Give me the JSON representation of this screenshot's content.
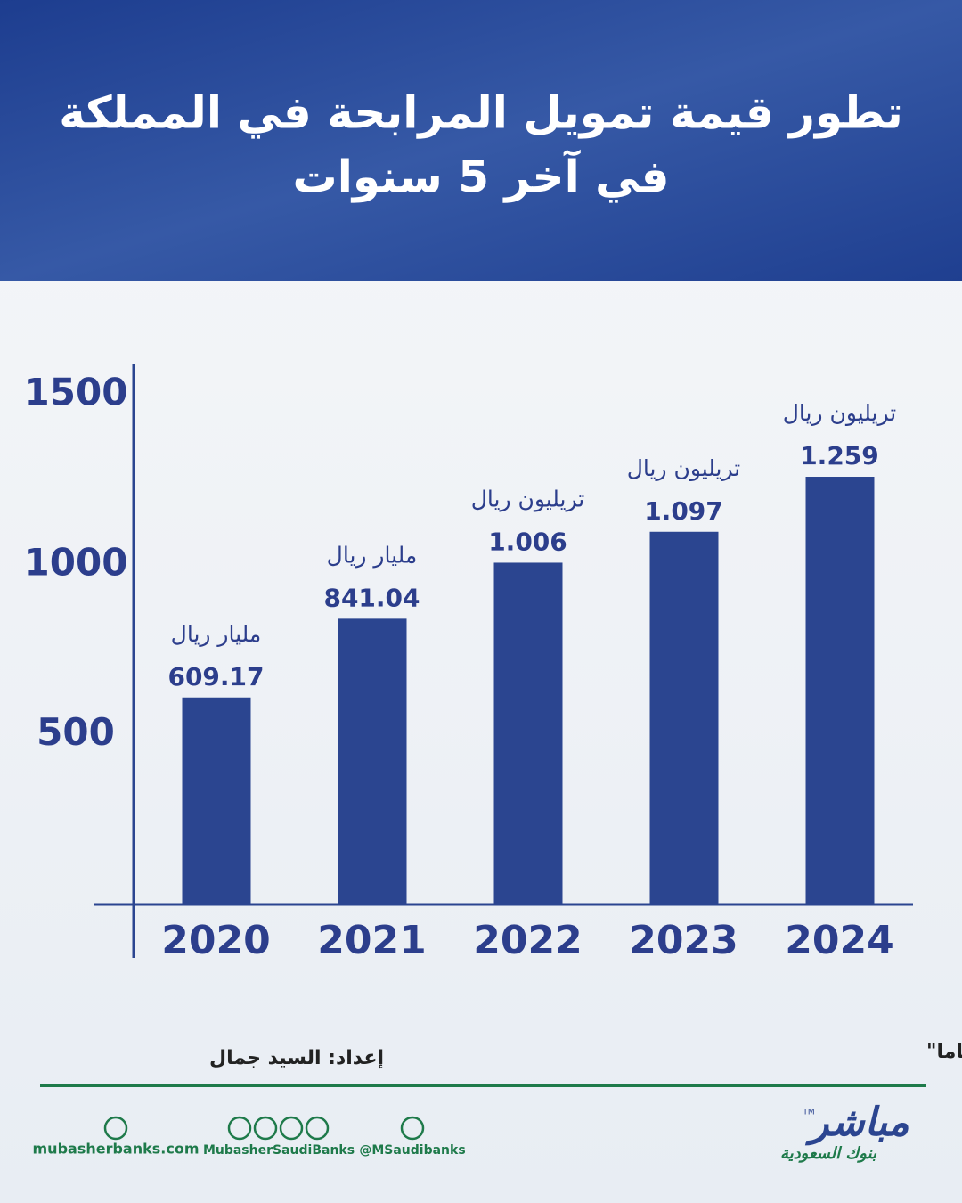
{
  "chart_data": {
    "type": "bar",
    "title": "تطور قيمة تمويل المرابحة في المملكة",
    "subtitle": "في آخر 5 سنوات",
    "categories": [
      "2020",
      "2021",
      "2022",
      "2023",
      "2024"
    ],
    "values": [
      609.17,
      841.04,
      1006,
      1097,
      1259
    ],
    "value_labels": [
      "609.17",
      "841.04",
      "1.006",
      "1.097",
      "1.259"
    ],
    "units": [
      "مليار ريال",
      "مليار ريال",
      "تريليون ريال",
      "تريليون ريال",
      "تريليون ريال"
    ],
    "color": "#2b4590",
    "ylim": [
      0,
      1600
    ],
    "yticks": [
      500,
      1000,
      1500
    ],
    "grid": false
  },
  "footer": {
    "source": "المصدر: البنك المركزي السعودي \"ساما\"",
    "author": "إعداد: السيد جمال",
    "website": "mubasherbanks.com",
    "social": "MubasherSaudiBanks",
    "twitter": "@MSaudibanks",
    "logo": "مباشر",
    "logo_sub": "بنوك السعودية",
    "trademark": "TM"
  }
}
